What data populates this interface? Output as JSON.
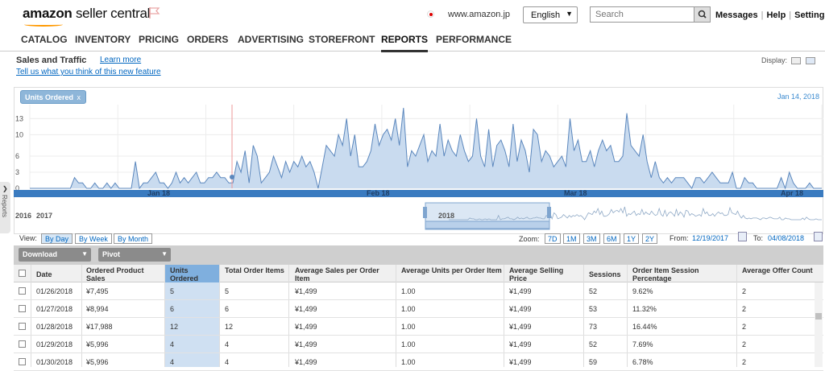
{
  "header": {
    "logo_text": "amazon",
    "logo_suffix": "seller central",
    "marketplace": "www.amazon.jp",
    "language": "English",
    "search_placeholder": "Search",
    "links": [
      "Messages",
      "Help",
      "Settings"
    ]
  },
  "nav": {
    "tabs": [
      "CATALOG",
      "INVENTORY",
      "PRICING",
      "ORDERS",
      "ADVERTISING",
      "STOREFRONT",
      "REPORTS",
      "PERFORMANCE"
    ],
    "active": "REPORTS"
  },
  "side_tab": "Reports",
  "page": {
    "title": "Sales and Traffic",
    "learn_more": "Learn more",
    "feedback_link": "Tell us what you think of this new feature",
    "display_label": "Display:"
  },
  "chart": {
    "filter_chip": "Units Ordered",
    "filter_close": "x",
    "hover_date": "Jan 14, 2018",
    "navigator_years": [
      "2016",
      "2017",
      "2018"
    ]
  },
  "chart_data": {
    "type": "area",
    "series": [
      {
        "values": [
          0,
          0,
          0,
          0,
          0,
          0,
          0,
          0,
          0,
          0,
          0,
          2,
          1,
          1,
          0,
          0,
          1,
          0,
          0,
          1,
          0,
          1,
          0,
          0,
          0,
          0,
          5,
          0,
          1,
          1,
          2,
          3,
          1,
          1,
          0,
          1,
          3,
          1,
          2,
          1,
          2,
          3,
          1,
          1,
          2,
          2,
          3,
          2,
          2,
          1,
          1,
          5,
          3,
          7,
          1,
          8,
          6,
          1,
          2,
          3,
          6,
          4,
          2,
          5,
          3,
          5,
          4,
          6,
          4,
          5,
          3,
          0,
          4,
          8,
          7,
          6,
          10,
          8,
          13,
          6,
          10,
          4,
          4,
          5,
          7,
          12,
          8,
          10,
          11,
          9,
          13,
          8,
          15,
          4,
          7,
          6,
          8,
          10,
          5,
          7,
          6,
          12,
          6,
          9,
          7,
          6,
          10,
          7,
          5,
          6,
          13,
          6,
          4,
          11,
          4,
          8,
          9,
          7,
          4,
          12,
          5,
          9,
          7,
          3,
          11,
          10,
          5,
          7,
          6,
          4,
          5,
          6,
          4,
          13,
          7,
          9,
          5,
          5,
          7,
          4,
          7,
          9,
          7,
          8,
          5,
          5,
          6,
          14,
          8,
          7,
          6,
          10,
          5,
          2,
          5,
          2,
          1,
          2,
          1,
          2,
          2,
          2,
          1,
          0,
          2,
          2,
          1,
          2,
          3,
          2,
          1,
          1,
          1,
          3,
          0,
          0,
          2,
          1,
          1,
          0,
          0,
          0,
          0,
          0,
          0,
          2,
          0,
          3,
          1,
          0,
          0,
          0,
          1,
          0,
          0,
          0
        ],
        "fill": "#c9dbef",
        "stroke": "#5b87bd"
      }
    ],
    "y_ticks": [
      0,
      3,
      6,
      10,
      13
    ],
    "x_ticks": [
      "Jan 18",
      "Feb 18",
      "Mar 18",
      "Apr 18"
    ],
    "ylim": [
      0,
      15
    ]
  },
  "view": {
    "label": "View:",
    "buttons": [
      "By Day",
      "By Week",
      "By Month"
    ],
    "selected": "By Day",
    "zoom_label": "Zoom:",
    "zoom_buttons": [
      "7D",
      "1M",
      "3M",
      "6M",
      "1Y",
      "2Y"
    ],
    "from_label": "From:",
    "from_date": "12/19/2017",
    "to_label": "To:",
    "to_date": "04/08/2018"
  },
  "toolbar": {
    "download_label": "Download",
    "pivot_label": "Pivot"
  },
  "table": {
    "headers": [
      "Date",
      "Ordered Product Sales",
      "Units Ordered",
      "Total Order Items",
      "Average Sales per Order Item",
      "Average Units per Order Item",
      "Average Selling Price",
      "Sessions",
      "Order Item Session Percentage",
      "Average Offer Count"
    ],
    "selected_column": "Units Ordered",
    "rows": [
      [
        "01/26/2018",
        "¥7,495",
        "5",
        "5",
        "¥1,499",
        "1.00",
        "¥1,499",
        "52",
        "9.62%",
        "2"
      ],
      [
        "01/27/2018",
        "¥8,994",
        "6",
        "6",
        "¥1,499",
        "1.00",
        "¥1,499",
        "53",
        "11.32%",
        "2"
      ],
      [
        "01/28/2018",
        "¥17,988",
        "12",
        "12",
        "¥1,499",
        "1.00",
        "¥1,499",
        "73",
        "16.44%",
        "2"
      ],
      [
        "01/29/2018",
        "¥5,996",
        "4",
        "4",
        "¥1,499",
        "1.00",
        "¥1,499",
        "52",
        "7.69%",
        "2"
      ],
      [
        "01/30/2018",
        "¥5,996",
        "4",
        "4",
        "¥1,499",
        "1.00",
        "¥1,499",
        "59",
        "6.78%",
        "2"
      ]
    ]
  }
}
